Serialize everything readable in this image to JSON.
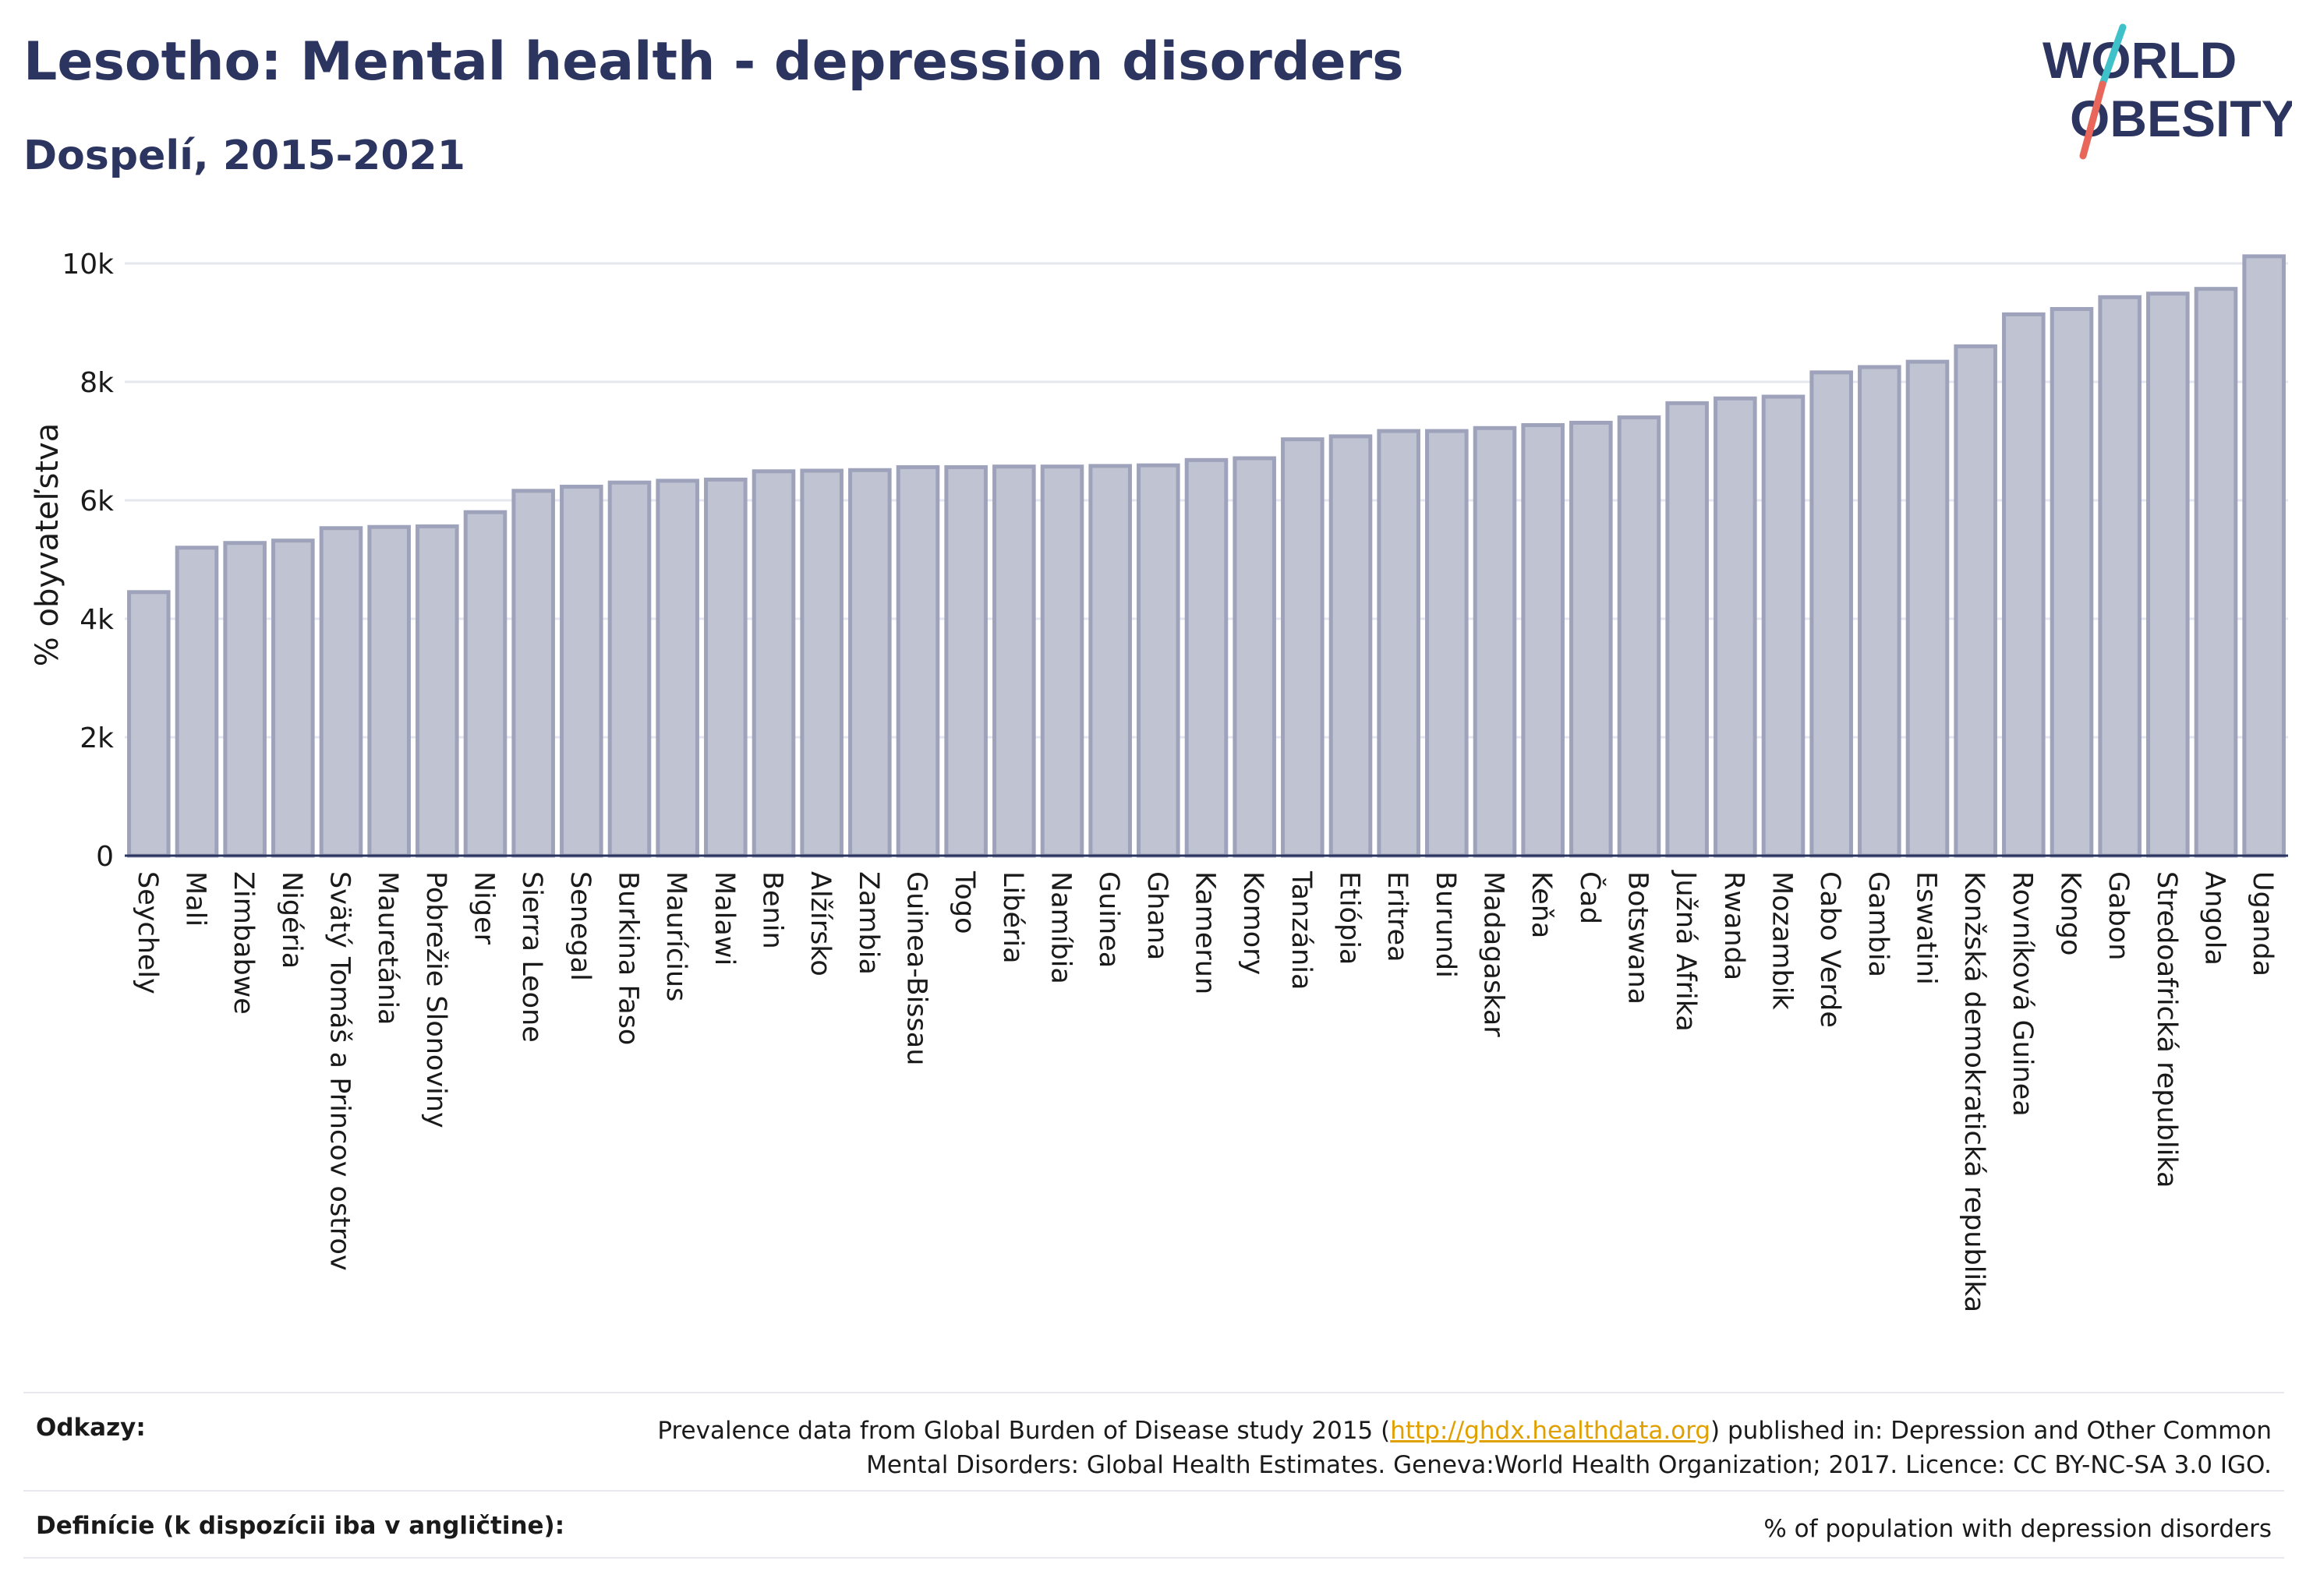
{
  "header": {
    "title": "Lesotho: Mental health - depression disorders",
    "subtitle": "Dospelí, 2015-2021"
  },
  "logo": {
    "line1": "WORLD",
    "line2": "OBESITY",
    "colors": {
      "text": "#2b3560",
      "slash_top": "#3fc1c9",
      "slash_bottom": "#e8665a"
    }
  },
  "chart_data": {
    "type": "bar",
    "ylabel": "% obyvateľstva",
    "xlabel": "",
    "ylim": [
      0,
      10500
    ],
    "yticks": [
      0,
      2000,
      4000,
      6000,
      8000,
      10000
    ],
    "ytick_labels": [
      "0",
      "2k",
      "4k",
      "6k",
      "8k",
      "10k"
    ],
    "grid": true,
    "bar_color": "#c0c3d2",
    "bar_edge_color": "#9ea3bb",
    "categories": [
      "Seychely",
      "Mali",
      "Zimbabwe",
      "Nigéria",
      "Svätý Tomáš a Princov ostrov",
      "Mauretánia",
      "Pobrežie Slonoviny",
      "Niger",
      "Sierra Leone",
      "Senegal",
      "Burkina Faso",
      "Maurícius",
      "Malawi",
      "Benin",
      "Alžírsko",
      "Zambia",
      "Guinea-Bissau",
      "Togo",
      "Libéria",
      "Namíbia",
      "Guinea",
      "Ghana",
      "Kamerun",
      "Komory",
      "Tanzánia",
      "Etiópia",
      "Eritrea",
      "Burundi",
      "Madagaskar",
      "Keňa",
      "Čad",
      "Botswana",
      "Južná Afrika",
      "Rwanda",
      "Mozambik",
      "Cabo Verde",
      "Gambia",
      "Eswatini",
      "Konžská demokratická republika",
      "Rovníková Guinea",
      "Kongo",
      "Gabon",
      "Stredoafrická republika",
      "Angola",
      "Uganda"
    ],
    "values": [
      4450,
      5200,
      5280,
      5320,
      5530,
      5550,
      5560,
      5800,
      6160,
      6230,
      6300,
      6330,
      6350,
      6490,
      6500,
      6510,
      6560,
      6560,
      6570,
      6570,
      6580,
      6590,
      6680,
      6710,
      7030,
      7080,
      7170,
      7170,
      7220,
      7270,
      7310,
      7400,
      7640,
      7720,
      7750,
      8160,
      8250,
      8340,
      8600,
      9140,
      9230,
      9430,
      9490,
      9570,
      10120
    ]
  },
  "footer": {
    "refs_label": "Odkazy:",
    "refs_text_before": "Prevalence data from Global Burden of Disease study 2015 (",
    "refs_link": "http://ghdx.healthdata.org",
    "refs_text_after": ") published in: Depression and Other Common",
    "refs_text_line2": "Mental Disorders: Global Health Estimates. Geneva:World Health Organization; 2017. Licence: CC BY-NC-SA 3.0 IGO.",
    "defs_label": "Definície (k dispozícii iba v angličtine):",
    "defs_text": "% of population with depression disorders"
  }
}
